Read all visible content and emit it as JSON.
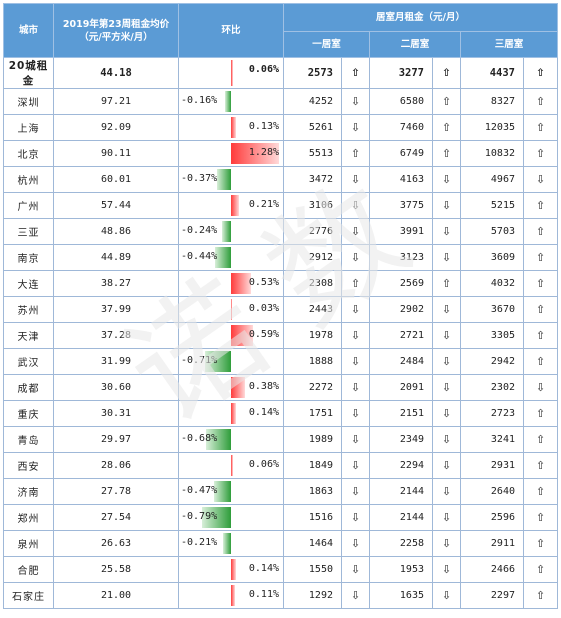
{
  "header": {
    "city": "城市",
    "avg_line1": "2019年第23周租金均价",
    "avg_line2": "（元/平方米/月）",
    "yoy": "环比",
    "rent_group": "居室月租金（元/月）",
    "one_room": "一居室",
    "two_room": "二居室",
    "three_room": "三居室"
  },
  "colors": {
    "header_bg": "#5b9bd5",
    "positive_bar": "#ff3b3b",
    "negative_bar": "#2e9d3a"
  },
  "icons": {
    "up": "up-arrow-icon",
    "down": "down-arrow-icon"
  },
  "summary": {
    "city": "20城租金",
    "avg": "44.18",
    "yoy": "0.06%",
    "yoy_value": 0.06,
    "r1": "2573",
    "a1": "⇧",
    "r2": "3277",
    "a2": "⇧",
    "r3": "4437",
    "a3": "⇧"
  },
  "rows": [
    {
      "city": "深圳",
      "avg": "97.21",
      "yoy": "-0.16%",
      "yoy_value": -0.16,
      "r1": "4252",
      "a1": "⇩",
      "r2": "6580",
      "a2": "⇧",
      "r3": "8327",
      "a3": "⇧"
    },
    {
      "city": "上海",
      "avg": "92.09",
      "yoy": "0.13%",
      "yoy_value": 0.13,
      "r1": "5261",
      "a1": "⇩",
      "r2": "7460",
      "a2": "⇧",
      "r3": "12035",
      "a3": "⇧"
    },
    {
      "city": "北京",
      "avg": "90.11",
      "yoy": "1.28%",
      "yoy_value": 1.28,
      "r1": "5513",
      "a1": "⇧",
      "r2": "6749",
      "a2": "⇧",
      "r3": "10832",
      "a3": "⇧"
    },
    {
      "city": "杭州",
      "avg": "60.01",
      "yoy": "-0.37%",
      "yoy_value": -0.37,
      "r1": "3472",
      "a1": "⇩",
      "r2": "4163",
      "a2": "⇩",
      "r3": "4967",
      "a3": "⇩"
    },
    {
      "city": "广州",
      "avg": "57.44",
      "yoy": "0.21%",
      "yoy_value": 0.21,
      "r1": "3106",
      "a1": "⇩",
      "r2": "3775",
      "a2": "⇩",
      "r3": "5215",
      "a3": "⇧"
    },
    {
      "city": "三亚",
      "avg": "48.86",
      "yoy": "-0.24%",
      "yoy_value": -0.24,
      "r1": "2776",
      "a1": "⇩",
      "r2": "3991",
      "a2": "⇩",
      "r3": "5703",
      "a3": "⇧"
    },
    {
      "city": "南京",
      "avg": "44.89",
      "yoy": "-0.44%",
      "yoy_value": -0.44,
      "r1": "2912",
      "a1": "⇩",
      "r2": "3123",
      "a2": "⇩",
      "r3": "3609",
      "a3": "⇧"
    },
    {
      "city": "大连",
      "avg": "38.27",
      "yoy": "0.53%",
      "yoy_value": 0.53,
      "r1": "2308",
      "a1": "⇧",
      "r2": "2569",
      "a2": "⇧",
      "r3": "4032",
      "a3": "⇧"
    },
    {
      "city": "苏州",
      "avg": "37.99",
      "yoy": "0.03%",
      "yoy_value": 0.03,
      "r1": "2443",
      "a1": "⇩",
      "r2": "2902",
      "a2": "⇩",
      "r3": "3670",
      "a3": "⇧"
    },
    {
      "city": "天津",
      "avg": "37.28",
      "yoy": "0.59%",
      "yoy_value": 0.59,
      "r1": "1978",
      "a1": "⇩",
      "r2": "2721",
      "a2": "⇩",
      "r3": "3305",
      "a3": "⇧"
    },
    {
      "city": "武汉",
      "avg": "31.99",
      "yoy": "-0.71%",
      "yoy_value": -0.71,
      "r1": "1888",
      "a1": "⇩",
      "r2": "2484",
      "a2": "⇩",
      "r3": "2942",
      "a3": "⇧"
    },
    {
      "city": "成都",
      "avg": "30.60",
      "yoy": "0.38%",
      "yoy_value": 0.38,
      "r1": "2272",
      "a1": "⇩",
      "r2": "2091",
      "a2": "⇩",
      "r3": "2302",
      "a3": "⇩"
    },
    {
      "city": "重庆",
      "avg": "30.31",
      "yoy": "0.14%",
      "yoy_value": 0.14,
      "r1": "1751",
      "a1": "⇩",
      "r2": "2151",
      "a2": "⇩",
      "r3": "2723",
      "a3": "⇧"
    },
    {
      "city": "青岛",
      "avg": "29.97",
      "yoy": "-0.68%",
      "yoy_value": -0.68,
      "r1": "1989",
      "a1": "⇩",
      "r2": "2349",
      "a2": "⇩",
      "r3": "3241",
      "a3": "⇧"
    },
    {
      "city": "西安",
      "avg": "28.06",
      "yoy": "0.06%",
      "yoy_value": 0.06,
      "r1": "1849",
      "a1": "⇩",
      "r2": "2294",
      "a2": "⇩",
      "r3": "2931",
      "a3": "⇧"
    },
    {
      "city": "济南",
      "avg": "27.78",
      "yoy": "-0.47%",
      "yoy_value": -0.47,
      "r1": "1863",
      "a1": "⇩",
      "r2": "2144",
      "a2": "⇩",
      "r3": "2640",
      "a3": "⇧"
    },
    {
      "city": "郑州",
      "avg": "27.54",
      "yoy": "-0.79%",
      "yoy_value": -0.79,
      "r1": "1516",
      "a1": "⇩",
      "r2": "2144",
      "a2": "⇩",
      "r3": "2596",
      "a3": "⇧"
    },
    {
      "city": "泉州",
      "avg": "26.63",
      "yoy": "-0.21%",
      "yoy_value": -0.21,
      "r1": "1464",
      "a1": "⇩",
      "r2": "2258",
      "a2": "⇩",
      "r3": "2911",
      "a3": "⇧"
    },
    {
      "city": "合肥",
      "avg": "25.58",
      "yoy": "0.14%",
      "yoy_value": 0.14,
      "r1": "1550",
      "a1": "⇩",
      "r2": "1953",
      "a2": "⇩",
      "r3": "2466",
      "a3": "⇧"
    },
    {
      "city": "石家庄",
      "avg": "21.00",
      "yoy": "0.11%",
      "yoy_value": 0.11,
      "r1": "1292",
      "a1": "⇩",
      "r2": "1635",
      "a2": "⇩",
      "r3": "2297",
      "a3": "⇧"
    }
  ]
}
